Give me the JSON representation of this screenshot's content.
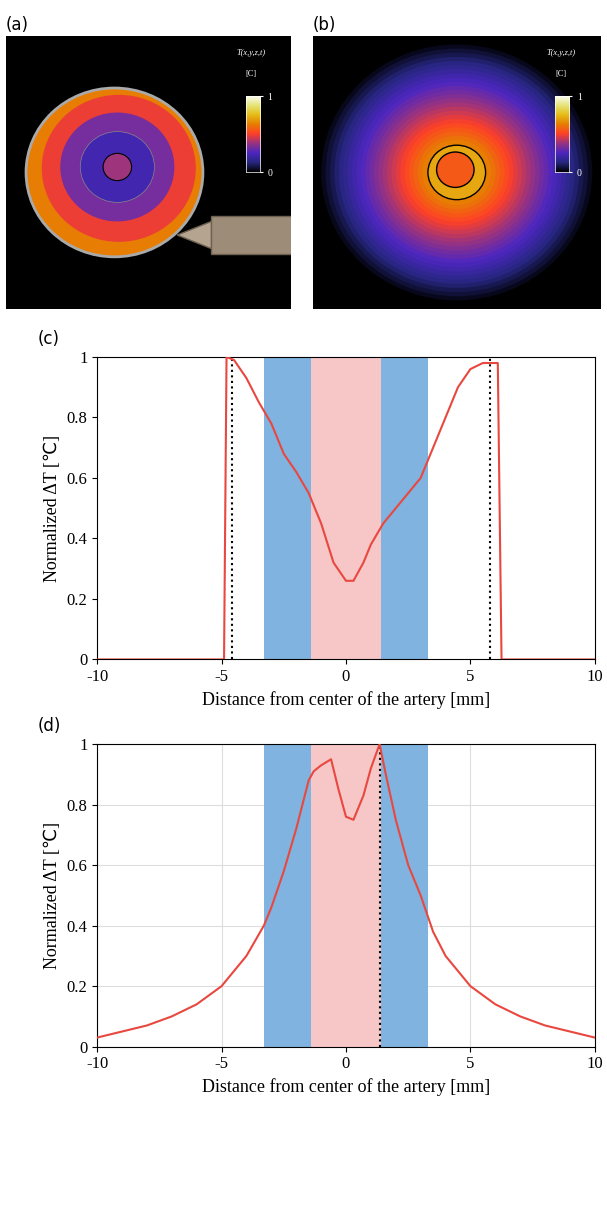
{
  "images": [
    {
      "title": "(a)",
      "colorbar": {
        "label": "T(x,y,z,t)",
        "unit": "[C]",
        "range": [
          0,
          1
        ],
        "ticks": [
          0,
          1
        ]
      }
    },
    {
      "title": "(b)",
      "colorbar": {
        "label": "T(x,y,z,t)",
        "unit": "[C]",
        "range": [
          0,
          1
        ],
        "ticks": [
          0,
          1
        ]
      }
    }
  ],
  "chart_data": [
    {
      "type": "line",
      "title": "(c)",
      "x_label": "Distance from center of the artery [mm]",
      "y_label": "Normalized ΔT [℃]",
      "x": [
        -10,
        -4.9,
        -4.8,
        -4.5,
        -4.0,
        -3.5,
        -3.0,
        -2.5,
        -2.0,
        -1.5,
        -1.0,
        -0.5,
        0.0,
        0.3,
        0.7,
        1.0,
        1.5,
        2.0,
        2.5,
        3.0,
        3.5,
        4.0,
        4.5,
        5.0,
        5.5,
        6.0,
        6.1,
        6.25,
        10
      ],
      "values": [
        0,
        0,
        1.0,
        0.99,
        0.93,
        0.85,
        0.78,
        0.68,
        0.62,
        0.55,
        0.45,
        0.32,
        0.26,
        0.26,
        0.32,
        0.38,
        0.45,
        0.5,
        0.55,
        0.6,
        0.7,
        0.8,
        0.9,
        0.96,
        0.98,
        0.98,
        0.98,
        0,
        0
      ],
      "color": "#e8483f",
      "bands": [
        {
          "from": -3.3,
          "to": -1.4,
          "color": "#80b3e0"
        },
        {
          "from": -1.4,
          "to": 1.4,
          "color": "#f7c6c7"
        },
        {
          "from": 1.4,
          "to": 3.3,
          "color": "#80b3e0"
        }
      ],
      "vlines": [
        -4.6,
        5.8
      ],
      "xlim": [
        -10,
        10
      ],
      "xticks": [
        -10,
        -5,
        0,
        5,
        10
      ],
      "ylim": [
        0,
        1
      ],
      "yticks": [
        0,
        0.2,
        0.4,
        0.6,
        0.8,
        1
      ],
      "grid": false
    },
    {
      "type": "line",
      "title": "(d)",
      "x_label": "Distance from center of the artery [mm]",
      "y_label": "Normalized ΔT [℃]",
      "x": [
        -10,
        -9,
        -8,
        -7,
        -6,
        -5,
        -4,
        -3.3,
        -3,
        -2.5,
        -2,
        -1.5,
        -1.3,
        -1,
        -0.6,
        -0.3,
        0,
        0.3,
        0.7,
        1,
        1.35,
        1.6,
        2,
        2.5,
        3,
        3.5,
        4,
        5,
        6,
        7,
        8,
        9,
        10
      ],
      "values": [
        0.03,
        0.05,
        0.07,
        0.1,
        0.14,
        0.2,
        0.3,
        0.4,
        0.46,
        0.58,
        0.72,
        0.88,
        0.91,
        0.93,
        0.95,
        0.85,
        0.76,
        0.75,
        0.83,
        0.92,
        1.0,
        0.9,
        0.75,
        0.6,
        0.5,
        0.38,
        0.3,
        0.2,
        0.14,
        0.1,
        0.07,
        0.05,
        0.03
      ],
      "color": "#e8483f",
      "bands": [
        {
          "from": -3.3,
          "to": -1.4,
          "color": "#80b3e0"
        },
        {
          "from": -1.4,
          "to": 1.4,
          "color": "#f7c6c7"
        },
        {
          "from": 1.4,
          "to": 3.3,
          "color": "#80b3e0"
        }
      ],
      "vlines": [
        1.35
      ],
      "xlim": [
        -10,
        10
      ],
      "xticks": [
        -10,
        -5,
        0,
        5,
        10
      ],
      "ylim": [
        0,
        1
      ],
      "yticks": [
        0,
        0.2,
        0.4,
        0.6,
        0.8,
        1
      ],
      "grid": true
    }
  ]
}
